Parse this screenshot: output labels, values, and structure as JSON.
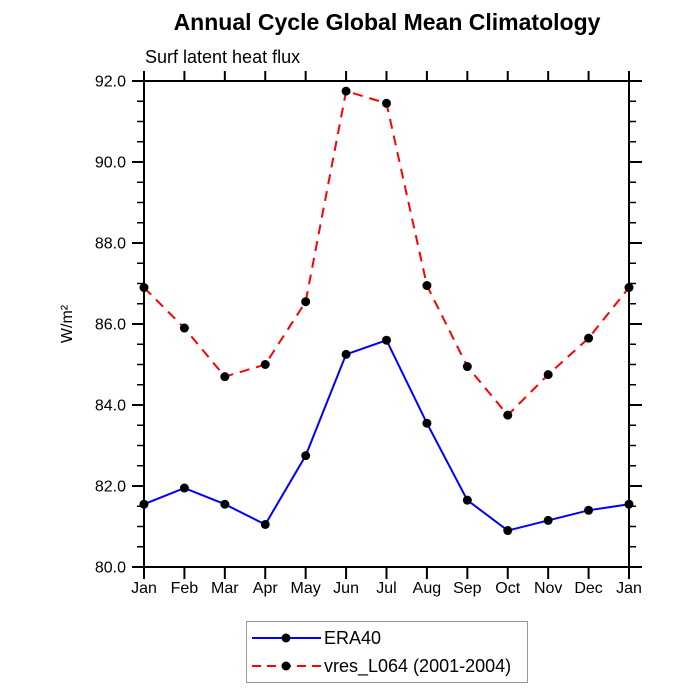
{
  "chart_data": {
    "type": "line",
    "title": "Annual Cycle Global Mean Climatology",
    "subtitle": "Surf latent heat flux",
    "ylabel": "W/m²",
    "xlabel": "",
    "ylim": [
      80.0,
      92.0
    ],
    "y_ticks": [
      80.0,
      82.0,
      84.0,
      86.0,
      88.0,
      90.0,
      92.0
    ],
    "y_tick_format_decimals": 1,
    "y_minor_step": 0.5,
    "grid": false,
    "legend_position": "bottom-center",
    "frame_color": "#000000",
    "categories": [
      "Jan",
      "Feb",
      "Mar",
      "Apr",
      "May",
      "Jun",
      "Jul",
      "Aug",
      "Sep",
      "Oct",
      "Nov",
      "Dec",
      "Jan"
    ],
    "series": [
      {
        "name": "ERA40",
        "color": "#0000ff",
        "line_style": "solid",
        "marker": "filled-circle",
        "marker_color": "#000000",
        "values": [
          81.55,
          81.95,
          81.55,
          81.05,
          82.75,
          85.25,
          85.6,
          83.55,
          81.65,
          80.9,
          81.15,
          81.4,
          81.55
        ]
      },
      {
        "name": "vres_L064 (2001-2004)",
        "color": "#ff0000",
        "line_style": "dashed",
        "marker": "filled-circle",
        "marker_color": "#000000",
        "values": [
          86.9,
          85.9,
          84.7,
          85.0,
          86.55,
          91.75,
          91.45,
          86.95,
          84.95,
          83.75,
          84.75,
          85.65,
          86.9
        ]
      }
    ]
  }
}
